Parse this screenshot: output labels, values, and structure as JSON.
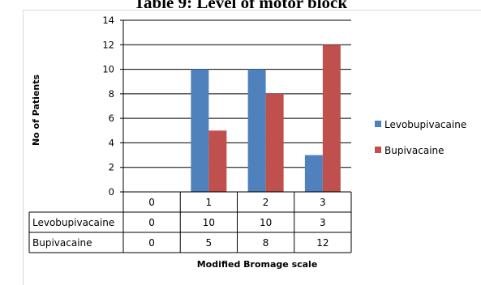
{
  "page": {
    "title": "Table 9: Level of motor block"
  },
  "chart_data": {
    "type": "bar",
    "categories": [
      "0",
      "1",
      "2",
      "3"
    ],
    "series": [
      {
        "name": "Levobupivacaine",
        "values": [
          0,
          10,
          10,
          3
        ],
        "color": "#4f81bd"
      },
      {
        "name": "Bupivacaine",
        "values": [
          0,
          5,
          8,
          12
        ],
        "color": "#c0504d"
      }
    ],
    "xlabel": "Modified  Bromage scale",
    "ylabel": "No of Patients",
    "ylim": [
      0,
      14
    ],
    "yticks": [
      "0",
      "2",
      "4",
      "6",
      "8",
      "10",
      "12",
      "14"
    ],
    "grid": true,
    "legend_position": "right",
    "data_table": true
  }
}
